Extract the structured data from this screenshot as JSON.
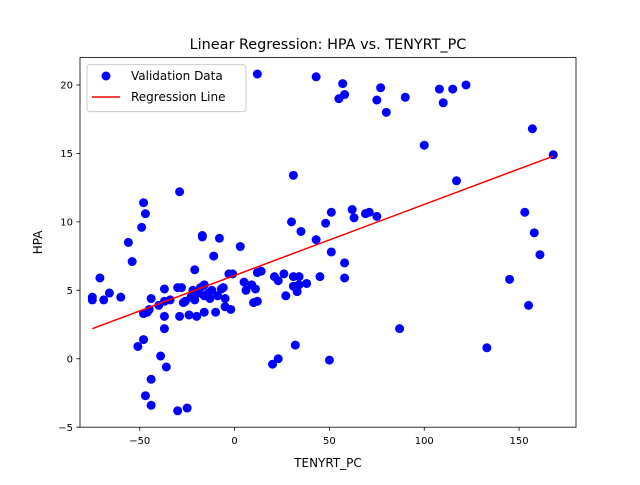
{
  "chart_data": {
    "type": "scatter",
    "title": "Linear Regression: HPA vs. TENYRT_PC",
    "xlabel": "TENYRT_PC",
    "ylabel": "HPA",
    "xlim": [
      -81.5,
      180
    ],
    "ylim": [
      -5,
      22
    ],
    "xticks": [
      -50,
      0,
      50,
      100,
      150
    ],
    "yticks": [
      -5,
      0,
      5,
      10,
      15,
      20
    ],
    "grid": false,
    "legend_position": "top-left",
    "series": [
      {
        "name": "Validation Data",
        "kind": "scatter",
        "color": "#0000ff",
        "points": [
          [
            -75,
            4.5
          ],
          [
            -75,
            4.3
          ],
          [
            -71,
            5.9
          ],
          [
            -69,
            4.3
          ],
          [
            -66,
            4.8
          ],
          [
            -60,
            4.5
          ],
          [
            -56,
            8.5
          ],
          [
            -54,
            7.1
          ],
          [
            -51,
            0.9
          ],
          [
            -49,
            9.6
          ],
          [
            -48,
            11.4
          ],
          [
            -47,
            10.6
          ],
          [
            -48,
            1.4
          ],
          [
            -47,
            -2.7
          ],
          [
            -48,
            3.3
          ],
          [
            -46,
            3.4
          ],
          [
            -45,
            3.6
          ],
          [
            -44,
            4.4
          ],
          [
            -44,
            -3.4
          ],
          [
            -44,
            -1.5
          ],
          [
            -40,
            3.9
          ],
          [
            -39,
            0.2
          ],
          [
            -37,
            4.2
          ],
          [
            -37,
            5.1
          ],
          [
            -37,
            3.1
          ],
          [
            -37,
            2.2
          ],
          [
            -36,
            -0.6
          ],
          [
            -34,
            4.3
          ],
          [
            -30,
            5.2
          ],
          [
            -29,
            12.2
          ],
          [
            -28,
            5.2
          ],
          [
            -30,
            -3.8
          ],
          [
            -29,
            3.1
          ],
          [
            -27,
            4.1
          ],
          [
            -26,
            4.2
          ],
          [
            -25,
            -3.6
          ],
          [
            -24,
            3.2
          ],
          [
            -23,
            4.5
          ],
          [
            -22,
            5.0
          ],
          [
            -21,
            6.5
          ],
          [
            -21,
            4.3
          ],
          [
            -20,
            3.1
          ],
          [
            -19,
            4.8
          ],
          [
            -18,
            5.2
          ],
          [
            -17,
            8.9
          ],
          [
            -17,
            9.0
          ],
          [
            -16,
            4.6
          ],
          [
            -16,
            5.4
          ],
          [
            -16,
            3.4
          ],
          [
            -14,
            4.8
          ],
          [
            -13,
            4.4
          ],
          [
            -12,
            5.0
          ],
          [
            -11,
            7.5
          ],
          [
            -10,
            3.4
          ],
          [
            -9,
            4.6
          ],
          [
            -8,
            8.8
          ],
          [
            -7,
            5.1
          ],
          [
            -6,
            5.2
          ],
          [
            -5,
            4.4
          ],
          [
            -5,
            3.8
          ],
          [
            -3,
            6.2
          ],
          [
            -2,
            3.6
          ],
          [
            -1,
            6.2
          ],
          [
            3,
            8.2
          ],
          [
            5,
            5.6
          ],
          [
            6,
            5.0
          ],
          [
            9,
            5.4
          ],
          [
            10,
            4.1
          ],
          [
            11,
            5.1
          ],
          [
            12,
            4.2
          ],
          [
            12,
            20.8
          ],
          [
            12,
            6.3
          ],
          [
            14,
            6.4
          ],
          [
            20,
            -0.4
          ],
          [
            21,
            6.0
          ],
          [
            23,
            5.7
          ],
          [
            23,
            0.0
          ],
          [
            26,
            6.2
          ],
          [
            27,
            4.6
          ],
          [
            30,
            10.0
          ],
          [
            31,
            13.4
          ],
          [
            31,
            6.0
          ],
          [
            31,
            5.3
          ],
          [
            32,
            1.0
          ],
          [
            33,
            4.9
          ],
          [
            34,
            5.4
          ],
          [
            34,
            6.0
          ],
          [
            35,
            9.3
          ],
          [
            38,
            5.5
          ],
          [
            43,
            8.7
          ],
          [
            43,
            20.6
          ],
          [
            45,
            6.0
          ],
          [
            48,
            9.9
          ],
          [
            50,
            -0.1
          ],
          [
            51,
            10.7
          ],
          [
            51,
            7.8
          ],
          [
            55,
            19.0
          ],
          [
            57,
            20.1
          ],
          [
            58,
            7.0
          ],
          [
            58,
            19.3
          ],
          [
            58,
            5.9
          ],
          [
            62,
            10.9
          ],
          [
            63,
            10.3
          ],
          [
            69,
            10.6
          ],
          [
            71,
            10.7
          ],
          [
            75,
            10.4
          ],
          [
            75,
            18.9
          ],
          [
            77,
            19.8
          ],
          [
            80,
            18.0
          ],
          [
            87,
            2.2
          ],
          [
            90,
            19.1
          ],
          [
            100,
            15.6
          ],
          [
            108,
            19.7
          ],
          [
            110,
            18.7
          ],
          [
            115,
            19.7
          ],
          [
            117,
            13.0
          ],
          [
            122,
            20.0
          ],
          [
            133,
            0.8
          ],
          [
            145,
            5.8
          ],
          [
            153,
            10.7
          ],
          [
            155,
            3.9
          ],
          [
            157,
            16.8
          ],
          [
            158,
            9.2
          ],
          [
            161,
            7.6
          ],
          [
            168,
            14.9
          ]
        ]
      },
      {
        "name": "Regression Line",
        "kind": "line",
        "color": "#ff0000",
        "points": [
          [
            -75,
            2.2
          ],
          [
            168,
            14.8
          ]
        ]
      }
    ]
  }
}
